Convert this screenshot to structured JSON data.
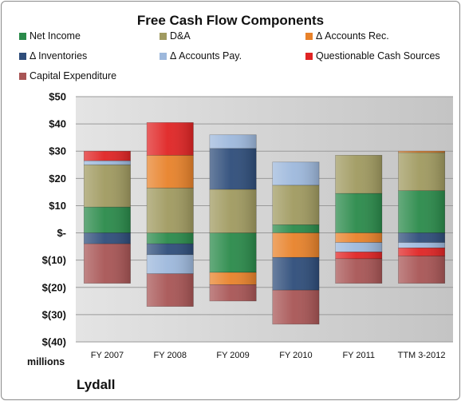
{
  "chart_data": {
    "type": "bar",
    "stacked": true,
    "title": "Free Cash Flow Components",
    "units_label": "millions",
    "company": "Lydall",
    "categories": [
      "FY 2007",
      "FY 2008",
      "FY 2009",
      "FY 2010",
      "FY 2011",
      "TTM 3-2012"
    ],
    "ylim": [
      -40,
      50
    ],
    "yticks": [
      50,
      40,
      30,
      20,
      10,
      0,
      -10,
      -20,
      -30,
      -40
    ],
    "ytick_labels": [
      "$50",
      "$40",
      "$30",
      "$20",
      "$10",
      "$-",
      "$(10)",
      "$(20)",
      "$(30)",
      "$(40)"
    ],
    "grid": true,
    "legend_position": "top",
    "series": [
      {
        "name": "Net Income",
        "color": "#2a8a4a",
        "values": [
          9.5,
          -4,
          -14.5,
          3,
          14.5,
          15.5
        ]
      },
      {
        "name": "D&A",
        "color": "#a09a60",
        "values": [
          15.5,
          16.5,
          16,
          14.5,
          14,
          14
        ]
      },
      {
        "name": "Δ Accounts Rec.",
        "color": "#e8822a",
        "values": [
          0,
          12,
          -4.5,
          -9,
          -3.5,
          0.5
        ]
      },
      {
        "name": "Δ Inventories",
        "color": "#2e4d7a",
        "values": [
          -4,
          -4,
          15,
          -12,
          0,
          -3.5
        ]
      },
      {
        "name": "Δ Accounts Pay.",
        "color": "#9db8dc",
        "values": [
          1.5,
          -7,
          5,
          8.5,
          -3.5,
          -2
        ]
      },
      {
        "name": "Questionable Cash Sources",
        "color": "#e02424",
        "values": [
          3.5,
          12,
          0,
          0,
          -2.5,
          -3
        ]
      },
      {
        "name": "Capital Expenditure",
        "color": "#a85555",
        "values": [
          -14.5,
          -12,
          -6,
          -12.5,
          -9,
          -10
        ]
      }
    ]
  }
}
